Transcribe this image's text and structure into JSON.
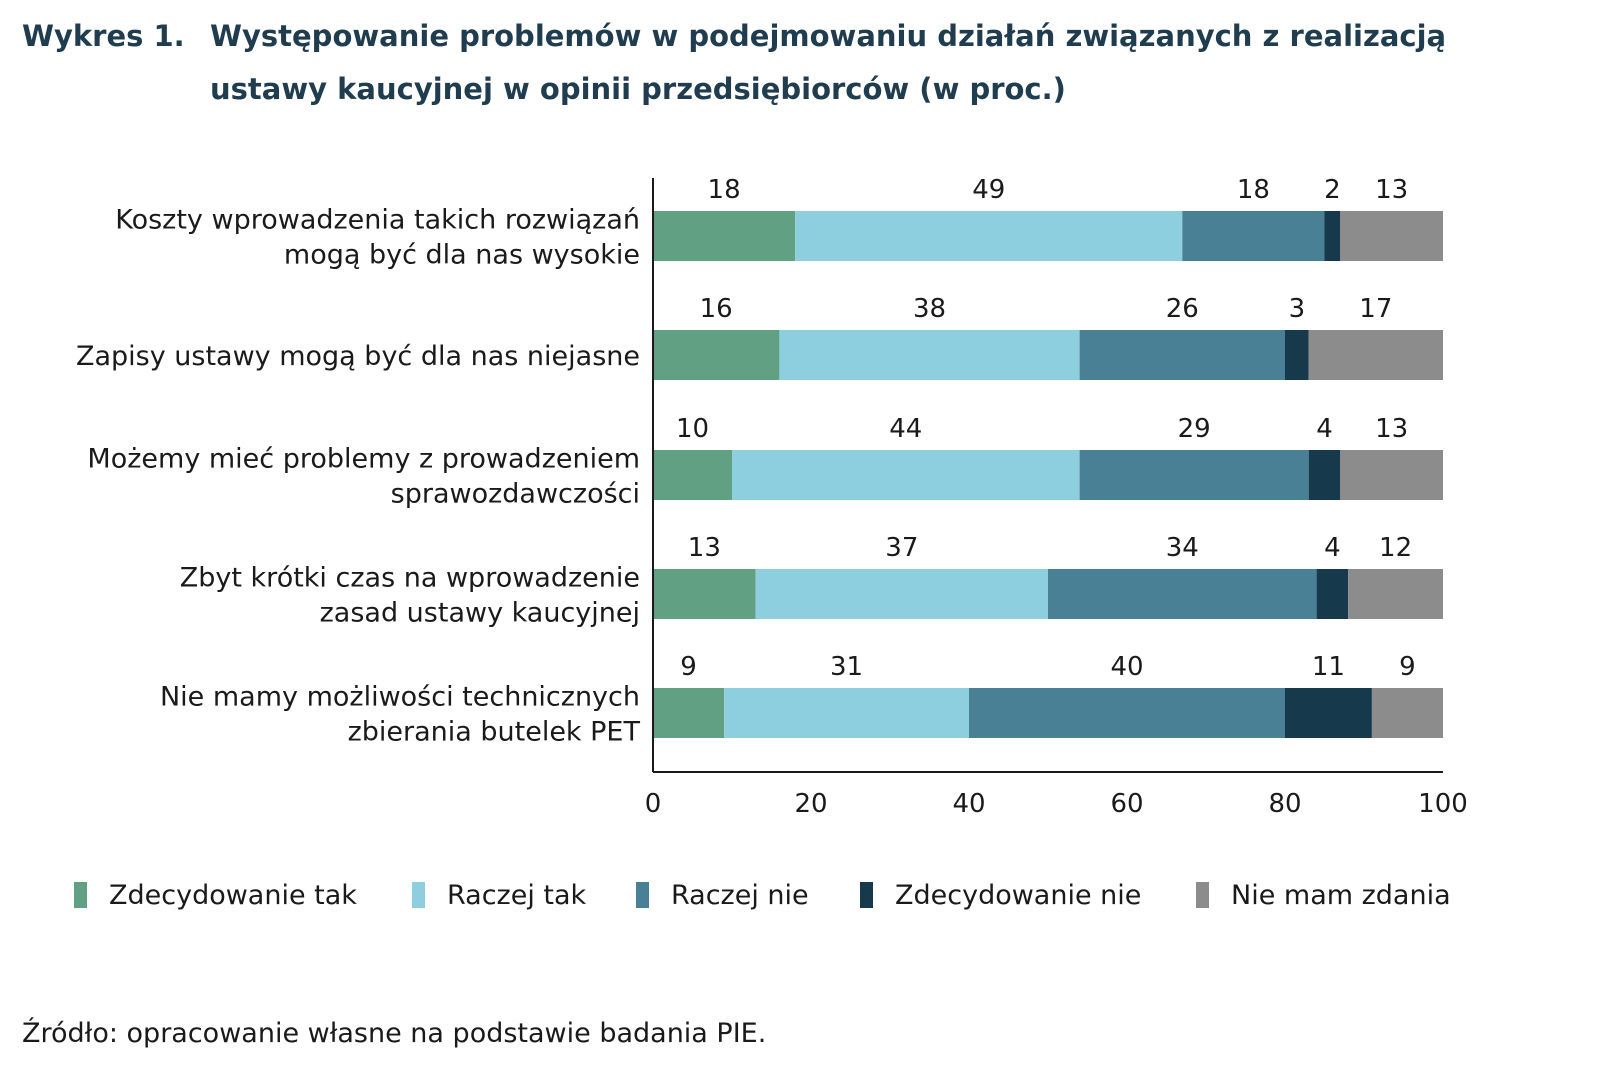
{
  "title": {
    "label": "Wykres 1.",
    "line1": "Występowanie problemów w podejmowaniu działań związanych z realizacją",
    "line2": "ustawy kaucyjnej w opinii przedsiębiorców (w proc.)"
  },
  "source": "Źródło: opracowanie własne na podstawie badania PIE.",
  "chart_data": {
    "type": "bar",
    "orientation": "horizontal",
    "stacked": true,
    "categories": [
      [
        "Koszty wprowadzenia takich rozwiązań",
        "mogą być dla nas wysokie"
      ],
      [
        "Zapisy ustawy mogą być dla nas niejasne"
      ],
      [
        "Możemy mieć problemy z prowadzeniem",
        "sprawozdawczości"
      ],
      [
        "Zbyt krótki czas na wprowadzenie",
        "zasad ustawy kaucyjnej"
      ],
      [
        "Nie mamy możliwości technicznych",
        "zbierania butelek PET"
      ]
    ],
    "series": [
      {
        "name": "Zdecydowanie tak",
        "color": "#62a083",
        "values": [
          18,
          16,
          10,
          13,
          9
        ]
      },
      {
        "name": "Raczej tak",
        "color": "#8ecfdf",
        "values": [
          49,
          38,
          44,
          37,
          31
        ]
      },
      {
        "name": "Raczej nie",
        "color": "#4a8096",
        "values": [
          18,
          26,
          29,
          34,
          40
        ]
      },
      {
        "name": "Zdecydowanie nie",
        "color": "#163a4b",
        "values": [
          2,
          3,
          4,
          4,
          11
        ]
      },
      {
        "name": "Nie mam zdania",
        "color": "#8c8c8c",
        "values": [
          13,
          17,
          13,
          12,
          9
        ]
      }
    ],
    "xlim": [
      0,
      100
    ],
    "xticks": [
      0,
      20,
      40,
      60,
      80,
      100
    ],
    "grid": false,
    "legend_position": "bottom"
  }
}
